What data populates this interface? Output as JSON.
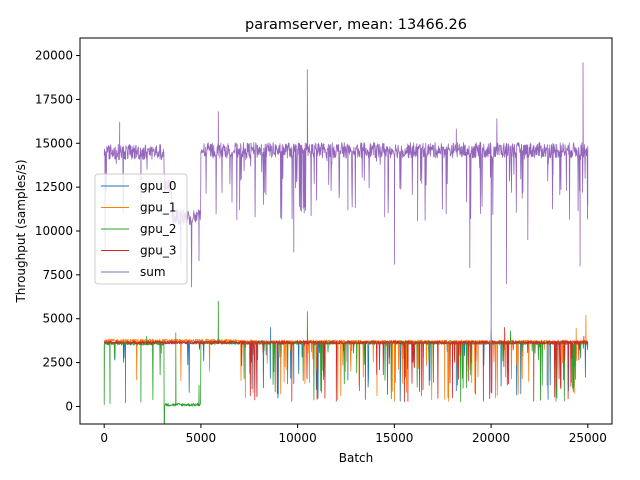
{
  "chart_data": {
    "type": "line",
    "title": "paramserver, mean: 13466.26",
    "xlabel": "Batch",
    "ylabel": "Throughput (samples/s)",
    "xlim": [
      -1250,
      26250
    ],
    "ylim": [
      -1000,
      21000
    ],
    "xticks": [
      0,
      5000,
      10000,
      15000,
      20000,
      25000
    ],
    "yticks": [
      0,
      2500,
      5000,
      7500,
      10000,
      12500,
      15000,
      17500,
      20000
    ],
    "x_count": 25000,
    "legend_position": "center-left",
    "grid": false,
    "series": [
      {
        "name": "gpu_0",
        "color": "#1f77b4",
        "baseline": 3620,
        "segments": [
          {
            "x": [
              0,
              3000
            ],
            "level": 3620
          },
          {
            "x": [
              3000,
              7000
            ],
            "level": 3650
          },
          {
            "x": [
              7000,
              25000
            ],
            "level": 3650
          }
        ],
        "spikes": [
          {
            "x": 8600,
            "y": 4500
          },
          {
            "x": 9800,
            "y": 1300
          },
          {
            "x": 12600,
            "y": 1500
          },
          {
            "x": 16800,
            "y": 1200
          },
          {
            "x": 18200,
            "y": 900
          },
          {
            "x": 19200,
            "y": 700
          },
          {
            "x": 20000,
            "y": 4400
          },
          {
            "x": 22900,
            "y": 1200
          },
          {
            "x": 24000,
            "y": 900
          }
        ]
      },
      {
        "name": "gpu_1",
        "color": "#ff7f0e",
        "baseline": 3700,
        "segments": [
          {
            "x": [
              0,
              7000
            ],
            "level": 3750
          },
          {
            "x": [
              7000,
              25000
            ],
            "level": 3700
          }
        ],
        "spikes": [
          {
            "x": 7300,
            "y": 500
          },
          {
            "x": 7700,
            "y": 800
          },
          {
            "x": 9300,
            "y": 1400
          },
          {
            "x": 11200,
            "y": 900
          },
          {
            "x": 14100,
            "y": 600
          },
          {
            "x": 15000,
            "y": 300
          },
          {
            "x": 17600,
            "y": 400
          },
          {
            "x": 21400,
            "y": 700
          },
          {
            "x": 24400,
            "y": 4450
          },
          {
            "x": 24900,
            "y": 5200
          }
        ]
      },
      {
        "name": "gpu_2",
        "color": "#2ca02c",
        "baseline": 3600,
        "segments": [
          {
            "x": [
              0,
              3100
            ],
            "level": 3580
          },
          {
            "x": [
              3100,
              5000
            ],
            "level": 100
          },
          {
            "x": [
              5000,
              25000
            ],
            "level": 3620
          }
        ],
        "spikes": [
          {
            "x": 0,
            "y": 100
          },
          {
            "x": 300,
            "y": 150
          },
          {
            "x": 1100,
            "y": 200
          },
          {
            "x": 1900,
            "y": 250
          },
          {
            "x": 2200,
            "y": 4000
          },
          {
            "x": 3700,
            "y": 4200
          },
          {
            "x": 4900,
            "y": 1200
          },
          {
            "x": 5900,
            "y": 6000
          },
          {
            "x": 10500,
            "y": 5400
          },
          {
            "x": 13200,
            "y": 900
          },
          {
            "x": 16400,
            "y": 600
          },
          {
            "x": 21000,
            "y": 4300
          },
          {
            "x": 23400,
            "y": 500
          }
        ]
      },
      {
        "name": "gpu_3",
        "color": "#d62728",
        "baseline": 3650,
        "segments": [
          {
            "x": [
              0,
              25000
            ],
            "level": 3650
          }
        ],
        "spikes": [
          {
            "x": 9700,
            "y": 300
          },
          {
            "x": 11000,
            "y": 400
          },
          {
            "x": 12000,
            "y": 300
          },
          {
            "x": 13500,
            "y": 400
          },
          {
            "x": 15700,
            "y": 300
          },
          {
            "x": 18000,
            "y": 500
          },
          {
            "x": 19600,
            "y": 300
          },
          {
            "x": 20700,
            "y": 4500
          },
          {
            "x": 22200,
            "y": 300
          },
          {
            "x": 24800,
            "y": 4000
          }
        ]
      },
      {
        "name": "sum",
        "color": "#9467bd",
        "baseline": 14500,
        "segments": [
          {
            "x": [
              0,
              3100
            ],
            "level": 14500
          },
          {
            "x": [
              3100,
              3500
            ],
            "level": 12500
          },
          {
            "x": [
              3500,
              5000
            ],
            "level": 10800
          },
          {
            "x": [
              5000,
              25000
            ],
            "level": 14600
          }
        ],
        "spikes": [
          {
            "x": 50,
            "y": 8800
          },
          {
            "x": 800,
            "y": 16200
          },
          {
            "x": 1900,
            "y": 11200
          },
          {
            "x": 4900,
            "y": 8300
          },
          {
            "x": 5900,
            "y": 16800
          },
          {
            "x": 7000,
            "y": 11200
          },
          {
            "x": 8300,
            "y": 12200
          },
          {
            "x": 9800,
            "y": 8800
          },
          {
            "x": 10500,
            "y": 19200
          },
          {
            "x": 12600,
            "y": 11200
          },
          {
            "x": 14500,
            "y": 10800
          },
          {
            "x": 15000,
            "y": 8100
          },
          {
            "x": 16200,
            "y": 10600
          },
          {
            "x": 18200,
            "y": 15800
          },
          {
            "x": 18900,
            "y": 7900
          },
          {
            "x": 20000,
            "y": 800
          },
          {
            "x": 20300,
            "y": 16400
          },
          {
            "x": 20800,
            "y": 7000
          },
          {
            "x": 21900,
            "y": 9500
          },
          {
            "x": 23200,
            "y": 13200
          },
          {
            "x": 24600,
            "y": 8000
          },
          {
            "x": 24750,
            "y": 19600
          },
          {
            "x": 25000,
            "y": 11500
          }
        ]
      }
    ]
  }
}
